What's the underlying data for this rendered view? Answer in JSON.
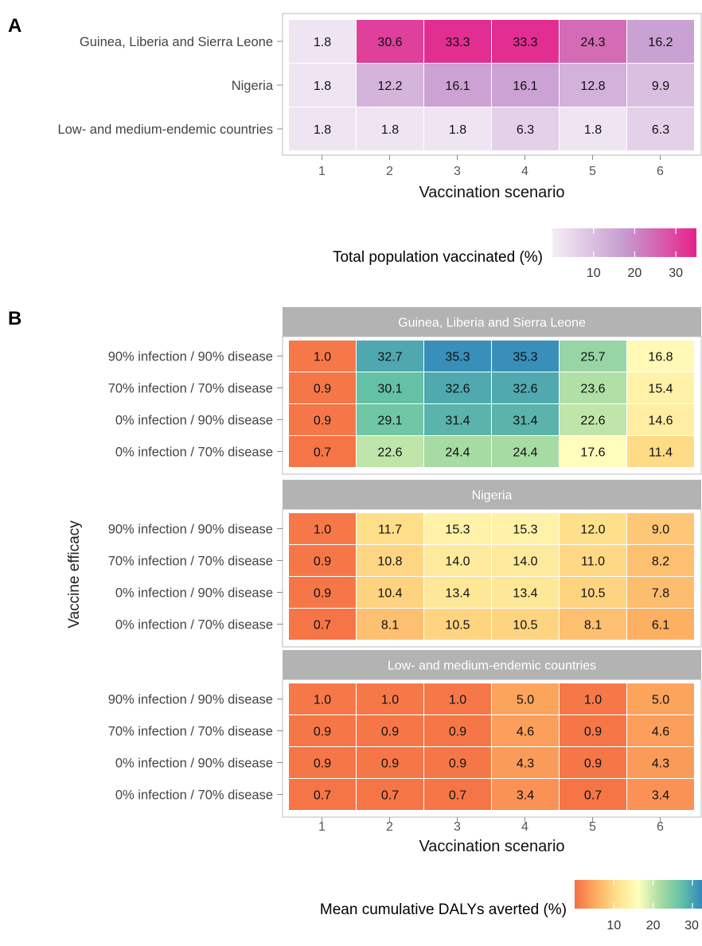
{
  "panel_a": {
    "label": "A",
    "legend_title": "Total population vaccinated (%)",
    "legend_ticks": [
      "10",
      "20",
      "30"
    ],
    "legend_gradient": [
      "#f4eef6",
      "#c79bd0",
      "#e6228a"
    ]
  },
  "panel_b": {
    "label": "B",
    "ylabel": "Vaccine efficacy",
    "legend_title": "Mean cumulative DALYs averted (%)",
    "legend_ticks": [
      "10",
      "20",
      "30"
    ],
    "legend_gradient": [
      "#f46d43",
      "#fdae61",
      "#fee08b",
      "#ffffbf",
      "#abdda4",
      "#66c2a5",
      "#3288bd"
    ]
  },
  "chart_data": [
    {
      "type": "heatmap",
      "title": "",
      "xlabel": "Vaccination scenario",
      "ylabel": "",
      "x": [
        "1",
        "2",
        "3",
        "4",
        "5",
        "6"
      ],
      "y": [
        "Guinea, Liberia and Sierra Leone",
        "Nigeria",
        "Low- and medium-endemic countries"
      ],
      "values": [
        [
          1.8,
          30.6,
          33.3,
          33.3,
          24.3,
          16.2
        ],
        [
          1.8,
          12.2,
          16.1,
          16.1,
          12.8,
          9.9
        ],
        [
          1.8,
          1.8,
          1.8,
          6.3,
          1.8,
          6.3
        ]
      ],
      "value_labels": [
        [
          "1.8",
          "30.6",
          "33.3",
          "33.3",
          "24.3",
          "16.2"
        ],
        [
          "1.8",
          "12.2",
          "16.1",
          "16.1",
          "12.8",
          "9.9"
        ],
        [
          "1.8",
          "1.8",
          "1.8",
          "6.3",
          "1.8",
          "6.3"
        ]
      ],
      "color_range": [
        0,
        35
      ],
      "legend": "Total population vaccinated (%)"
    },
    {
      "type": "heatmap",
      "title": "",
      "xlabel": "Vaccination scenario",
      "ylabel": "Vaccine efficacy",
      "x": [
        "1",
        "2",
        "3",
        "4",
        "5",
        "6"
      ],
      "y": [
        "90% infection / 90% disease",
        "70% infection / 70% disease",
        "0% infection / 90% disease",
        "0% infection / 70% disease"
      ],
      "color_range": [
        0,
        36
      ],
      "legend": "Mean cumulative DALYs averted (%)",
      "facets": [
        {
          "name": "Guinea, Liberia and Sierra Leone",
          "values": [
            [
              1.0,
              32.7,
              35.3,
              35.3,
              25.7,
              16.8
            ],
            [
              0.9,
              30.1,
              32.6,
              32.6,
              23.6,
              15.4
            ],
            [
              0.9,
              29.1,
              31.4,
              31.4,
              22.6,
              14.6
            ],
            [
              0.7,
              22.6,
              24.4,
              24.4,
              17.6,
              11.4
            ]
          ],
          "value_labels": [
            [
              "1.0",
              "32.7",
              "35.3",
              "35.3",
              "25.7",
              "16.8"
            ],
            [
              "0.9",
              "30.1",
              "32.6",
              "32.6",
              "23.6",
              "15.4"
            ],
            [
              "0.9",
              "29.1",
              "31.4",
              "31.4",
              "22.6",
              "14.6"
            ],
            [
              "0.7",
              "22.6",
              "24.4",
              "24.4",
              "17.6",
              "11.4"
            ]
          ]
        },
        {
          "name": "Nigeria",
          "values": [
            [
              1.0,
              11.7,
              15.3,
              15.3,
              12.0,
              9.0
            ],
            [
              0.9,
              10.8,
              14.0,
              14.0,
              11.0,
              8.2
            ],
            [
              0.9,
              10.4,
              13.4,
              13.4,
              10.5,
              7.8
            ],
            [
              0.7,
              8.1,
              10.5,
              10.5,
              8.1,
              6.1
            ]
          ],
          "value_labels": [
            [
              "1.0",
              "11.7",
              "15.3",
              "15.3",
              "12.0",
              "9.0"
            ],
            [
              "0.9",
              "10.8",
              "14.0",
              "14.0",
              "11.0",
              "8.2"
            ],
            [
              "0.9",
              "10.4",
              "13.4",
              "13.4",
              "10.5",
              "7.8"
            ],
            [
              "0.7",
              "8.1",
              "10.5",
              "10.5",
              "8.1",
              "6.1"
            ]
          ]
        },
        {
          "name": "Low- and medium-endemic countries",
          "values": [
            [
              1.0,
              1.0,
              1.0,
              5.0,
              1.0,
              5.0
            ],
            [
              0.9,
              0.9,
              0.9,
              4.6,
              0.9,
              4.6
            ],
            [
              0.9,
              0.9,
              0.9,
              4.3,
              0.9,
              4.3
            ],
            [
              0.7,
              0.7,
              0.7,
              3.4,
              0.7,
              3.4
            ]
          ],
          "value_labels": [
            [
              "1.0",
              "1.0",
              "1.0",
              "5.0",
              "1.0",
              "5.0"
            ],
            [
              "0.9",
              "0.9",
              "0.9",
              "4.6",
              "0.9",
              "4.6"
            ],
            [
              "0.9",
              "0.9",
              "0.9",
              "4.3",
              "0.9",
              "4.3"
            ],
            [
              "0.7",
              "0.7",
              "0.7",
              "3.4",
              "0.7",
              "3.4"
            ]
          ]
        }
      ]
    }
  ]
}
